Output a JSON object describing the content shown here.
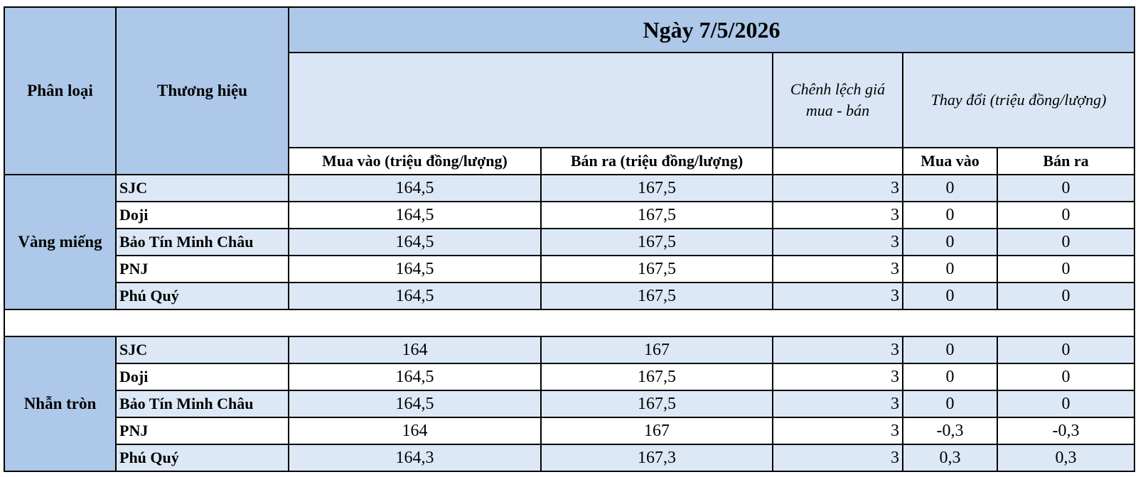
{
  "header": {
    "category": "Phân loại",
    "brand": "Thương hiệu",
    "date": "Ngày 7/5/2026",
    "spread": "Chênh lệch giá mua - bán",
    "change": "Thay đổi (triệu đồng/lượng)",
    "buy": "Mua vào (triệu đồng/lượng)",
    "sell": "Bán ra (triệu đồng/lượng)",
    "change_buy": "Mua vào",
    "change_sell": "Bán ra"
  },
  "groups": [
    {
      "name": "Vàng miếng",
      "rows": [
        [
          "SJC",
          "164,5",
          "167,5",
          "3",
          "0",
          "0"
        ],
        [
          "Doji",
          "164,5",
          "167,5",
          "3",
          "0",
          "0"
        ],
        [
          "Bảo Tín Minh Châu",
          "164,5",
          "167,5",
          "3",
          "0",
          "0"
        ],
        [
          "PNJ",
          "164,5",
          "167,5",
          "3",
          "0",
          "0"
        ],
        [
          "Phú Quý",
          "164,5",
          "167,5",
          "3",
          "0",
          "0"
        ]
      ]
    },
    {
      "name": "Nhẫn tròn",
      "rows": [
        [
          "SJC",
          "164",
          "167",
          "3",
          "0",
          "0"
        ],
        [
          "Doji",
          "164,5",
          "167,5",
          "3",
          "0",
          "0"
        ],
        [
          "Bảo Tín Minh Châu",
          "164,5",
          "167,5",
          "3",
          "0",
          "0"
        ],
        [
          "PNJ",
          "164",
          "167",
          "3",
          "-0,3",
          "-0,3"
        ],
        [
          "Phú Quý",
          "164,3",
          "167,3",
          "3",
          "0,3",
          "0,3"
        ]
      ]
    }
  ]
}
